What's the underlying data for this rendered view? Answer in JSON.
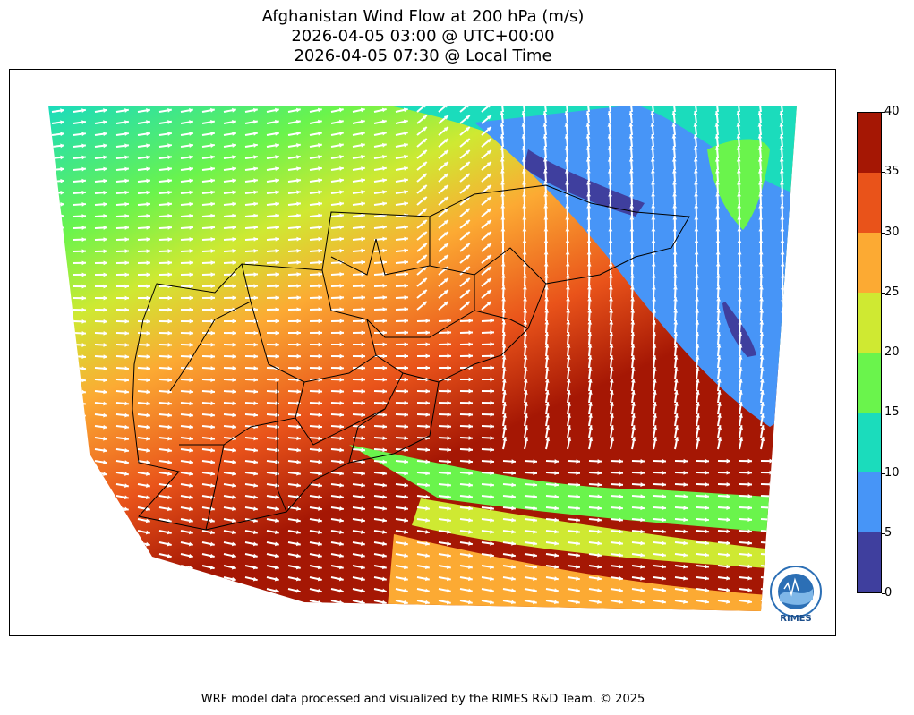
{
  "title": {
    "line1": "Afghanistan Wind Flow at 200 hPa (m/s)",
    "line2": "2026-04-05 03:00 @ UTC+00:00",
    "line3": "2026-04-05 07:30 @ Local Time"
  },
  "colorbar": {
    "ticks": [
      "0",
      "5",
      "10",
      "15",
      "20",
      "25",
      "30",
      "35",
      "40"
    ],
    "colors": [
      "#3f3f9e",
      "#4795f7",
      "#1bdcbc",
      "#6af44c",
      "#cfe932",
      "#fcaa33",
      "#e9531a",
      "#a51704"
    ]
  },
  "map": {
    "background_colors": {
      "slow": "#4795f7",
      "mid": "#1bdcbc",
      "fast": "#fcaa33"
    }
  },
  "logo": {
    "label": "RIMES"
  },
  "footer": {
    "credit": "WRF model data processed and visualized by the RIMES R&D Team. © 2025"
  }
}
